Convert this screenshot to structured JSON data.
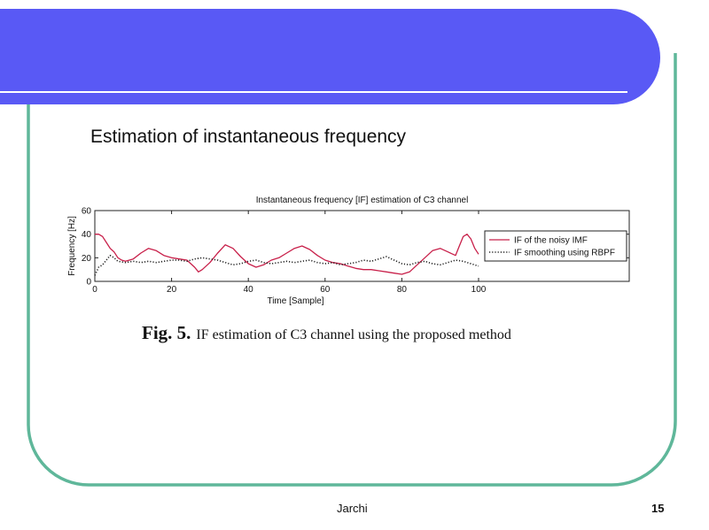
{
  "theme": {
    "header_color": "#5959f5",
    "border_color": "#5fb79a"
  },
  "slide": {
    "title": "Estimation of instantaneous frequency",
    "caption_fig": "Fig. 5.",
    "caption_text": "IF estimation of C3 channel using the proposed method",
    "footer_author": "Jarchi",
    "page_number": "15"
  },
  "chart_data": {
    "type": "line",
    "title": "Instantaneous frequency [IF] estimation of C3 channel",
    "xlabel": "Time [Sample]",
    "ylabel": "Frequency [Hz]",
    "xlim": [
      0,
      100
    ],
    "ylim": [
      0,
      60
    ],
    "xticks": [
      0,
      20,
      40,
      60,
      80,
      100
    ],
    "yticks": [
      0,
      20,
      40,
      60
    ],
    "grid": false,
    "legend_position": "right",
    "series": [
      {
        "name": "IF of the noisy IMF",
        "color": "#c8204a",
        "style": "solid",
        "x": [
          0,
          1,
          2,
          3,
          4,
          5,
          6,
          7,
          8,
          10,
          12,
          14,
          16,
          18,
          20,
          22,
          24,
          26,
          27,
          28,
          30,
          32,
          34,
          36,
          38,
          40,
          42,
          44,
          46,
          48,
          50,
          52,
          54,
          56,
          58,
          60,
          62,
          64,
          66,
          68,
          70,
          72,
          74,
          76,
          78,
          80,
          82,
          84,
          86,
          88,
          90,
          92,
          94,
          95,
          96,
          97,
          98,
          99,
          100
        ],
        "y": [
          40,
          40,
          38,
          33,
          28,
          25,
          20,
          18,
          17,
          19,
          24,
          28,
          26,
          22,
          20,
          19,
          18,
          12,
          8,
          10,
          16,
          24,
          31,
          28,
          21,
          15,
          12,
          14,
          18,
          20,
          24,
          28,
          30,
          27,
          22,
          18,
          16,
          15,
          13,
          11,
          10,
          10,
          9,
          8,
          7,
          6,
          8,
          14,
          20,
          26,
          28,
          25,
          22,
          30,
          38,
          40,
          36,
          28,
          23
        ]
      },
      {
        "name": "IF smoothing using RBPF",
        "color": "#222222",
        "style": "dotted",
        "x": [
          0,
          1,
          2,
          3,
          4,
          5,
          6,
          8,
          10,
          12,
          14,
          16,
          18,
          20,
          22,
          24,
          26,
          28,
          30,
          32,
          34,
          36,
          38,
          40,
          42,
          44,
          46,
          48,
          50,
          52,
          54,
          56,
          58,
          60,
          62,
          64,
          66,
          68,
          70,
          72,
          74,
          76,
          78,
          80,
          82,
          84,
          86,
          88,
          90,
          92,
          94,
          96,
          98,
          100
        ],
        "y": [
          5,
          12,
          14,
          18,
          22,
          20,
          17,
          16,
          17,
          16,
          17,
          16,
          17,
          18,
          18,
          17,
          19,
          20,
          19,
          18,
          16,
          14,
          15,
          17,
          18,
          16,
          15,
          16,
          17,
          16,
          17,
          18,
          16,
          15,
          16,
          14,
          15,
          16,
          18,
          17,
          19,
          21,
          18,
          15,
          14,
          16,
          17,
          15,
          14,
          16,
          18,
          17,
          15,
          13
        ]
      }
    ]
  }
}
